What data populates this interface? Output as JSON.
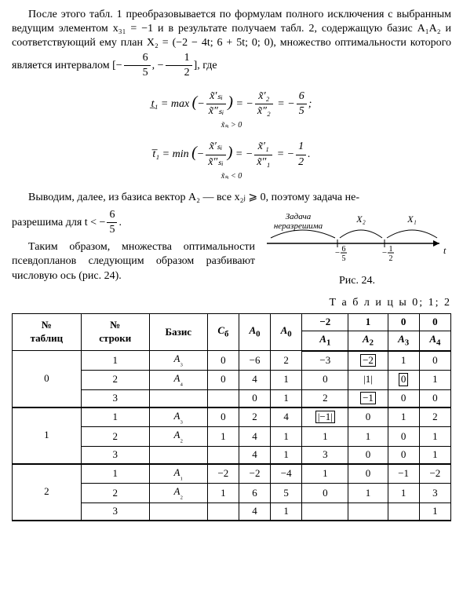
{
  "paragraphs": {
    "p1": "После этого табл. 1 преобразовывается по формулам полного исключения с выбранным ведущим элементом x₃₁ = −1 и в результате получаем табл. 2, содержащую базис A₁A₂ и соответствующий ему план X₂ = (−2 − 4t; 6 + 5t; 0; 0), множество оптимальности которого является интервалом",
    "p1_tail": ", где",
    "p2a": "Выводим, далее, из базиса вектор A₂ — все x₂ⱼ ⩾ 0, поэтому задача не-",
    "p2b": "разрешима для t < −",
    "p2c": ".",
    "p3": "Таким образом, множества оптимальности псевдопланов следующим образом разбивают числовую ось (рис. 24)."
  },
  "interval": {
    "left_num": "6",
    "left_den": "5",
    "right_num": "1",
    "right_den": "2"
  },
  "equations": {
    "t_lower": {
      "lhs": "t̲₁ = max",
      "cond": "x̃ₛᵢ > 0",
      "paren_num": "x̃′ₛᵢ",
      "paren_den": "x̃″ₛᵢ",
      "mid_num": "x̃′₂",
      "mid_den": "x̃″₂",
      "rhs_num": "6",
      "rhs_den": "5",
      "tail": ";"
    },
    "t_upper": {
      "lhs": "t̅₁ = min",
      "cond": "x̃ₛᵢ < 0",
      "paren_num": "x̃′ₛᵢ",
      "paren_den": "x̃″ₛᵢ",
      "mid_num": "x̃′₁",
      "mid_den": "x̃″₁",
      "rhs_num": "1",
      "rhs_den": "2",
      "tail": "."
    }
  },
  "figure": {
    "label_unsolvable": "Задача\nнеразрешима",
    "label_x2": "X₂",
    "label_x1": "X₁",
    "tick1_num": "6",
    "tick1_den": "5",
    "tick2_num": "1",
    "tick2_den": "2",
    "axis_label": "t",
    "caption": "Рис. 24."
  },
  "table": {
    "title": "Т а б л и ц ы  0; 1; 2",
    "headers": {
      "col1": "№\nтаблиц",
      "col2": "№\nстроки",
      "col3": "Базис",
      "col4": "Cб",
      "col5": "A₀",
      "col5b": "A₀",
      "top": [
        "−2",
        "1",
        "0",
        "0"
      ],
      "bottom": [
        "A₁",
        "A₂",
        "A₃",
        "A₄"
      ]
    },
    "blocks": [
      {
        "id": "0",
        "rows": [
          [
            "1",
            "A₃",
            "0",
            "−6",
            "2",
            "−3",
            "−2",
            "1",
            "0"
          ],
          [
            "2",
            "A₄",
            "0",
            "4",
            "1",
            "0",
            "|1|",
            "0",
            "1"
          ],
          [
            "3",
            "",
            "",
            "0",
            "1",
            "2",
            "−1",
            "0",
            "0"
          ]
        ],
        "boxed": [
          [
            0,
            7
          ],
          [
            1,
            8
          ],
          [
            2,
            7
          ]
        ]
      },
      {
        "id": "1",
        "rows": [
          [
            "1",
            "A₃",
            "0",
            "2",
            "4",
            "|−1|",
            "0",
            "1",
            "2"
          ],
          [
            "2",
            "A₂",
            "1",
            "4",
            "1",
            "1",
            "1",
            "0",
            "1"
          ],
          [
            "3",
            "",
            "",
            "4",
            "1",
            "3",
            "0",
            "0",
            "1"
          ]
        ],
        "boxed": [
          [
            0,
            6
          ]
        ]
      },
      {
        "id": "2",
        "rows": [
          [
            "1",
            "A₁",
            "−2",
            "−2",
            "−4",
            "1",
            "0",
            "−1",
            "−2"
          ],
          [
            "2",
            "A₂",
            "1",
            "6",
            "5",
            "0",
            "1",
            "1",
            "3"
          ],
          [
            "3",
            "",
            "",
            "4",
            "1",
            "",
            "",
            "",
            "1"
          ]
        ],
        "boxed": []
      }
    ]
  },
  "colors": {
    "text": "#000000",
    "bg": "#ffffff"
  }
}
